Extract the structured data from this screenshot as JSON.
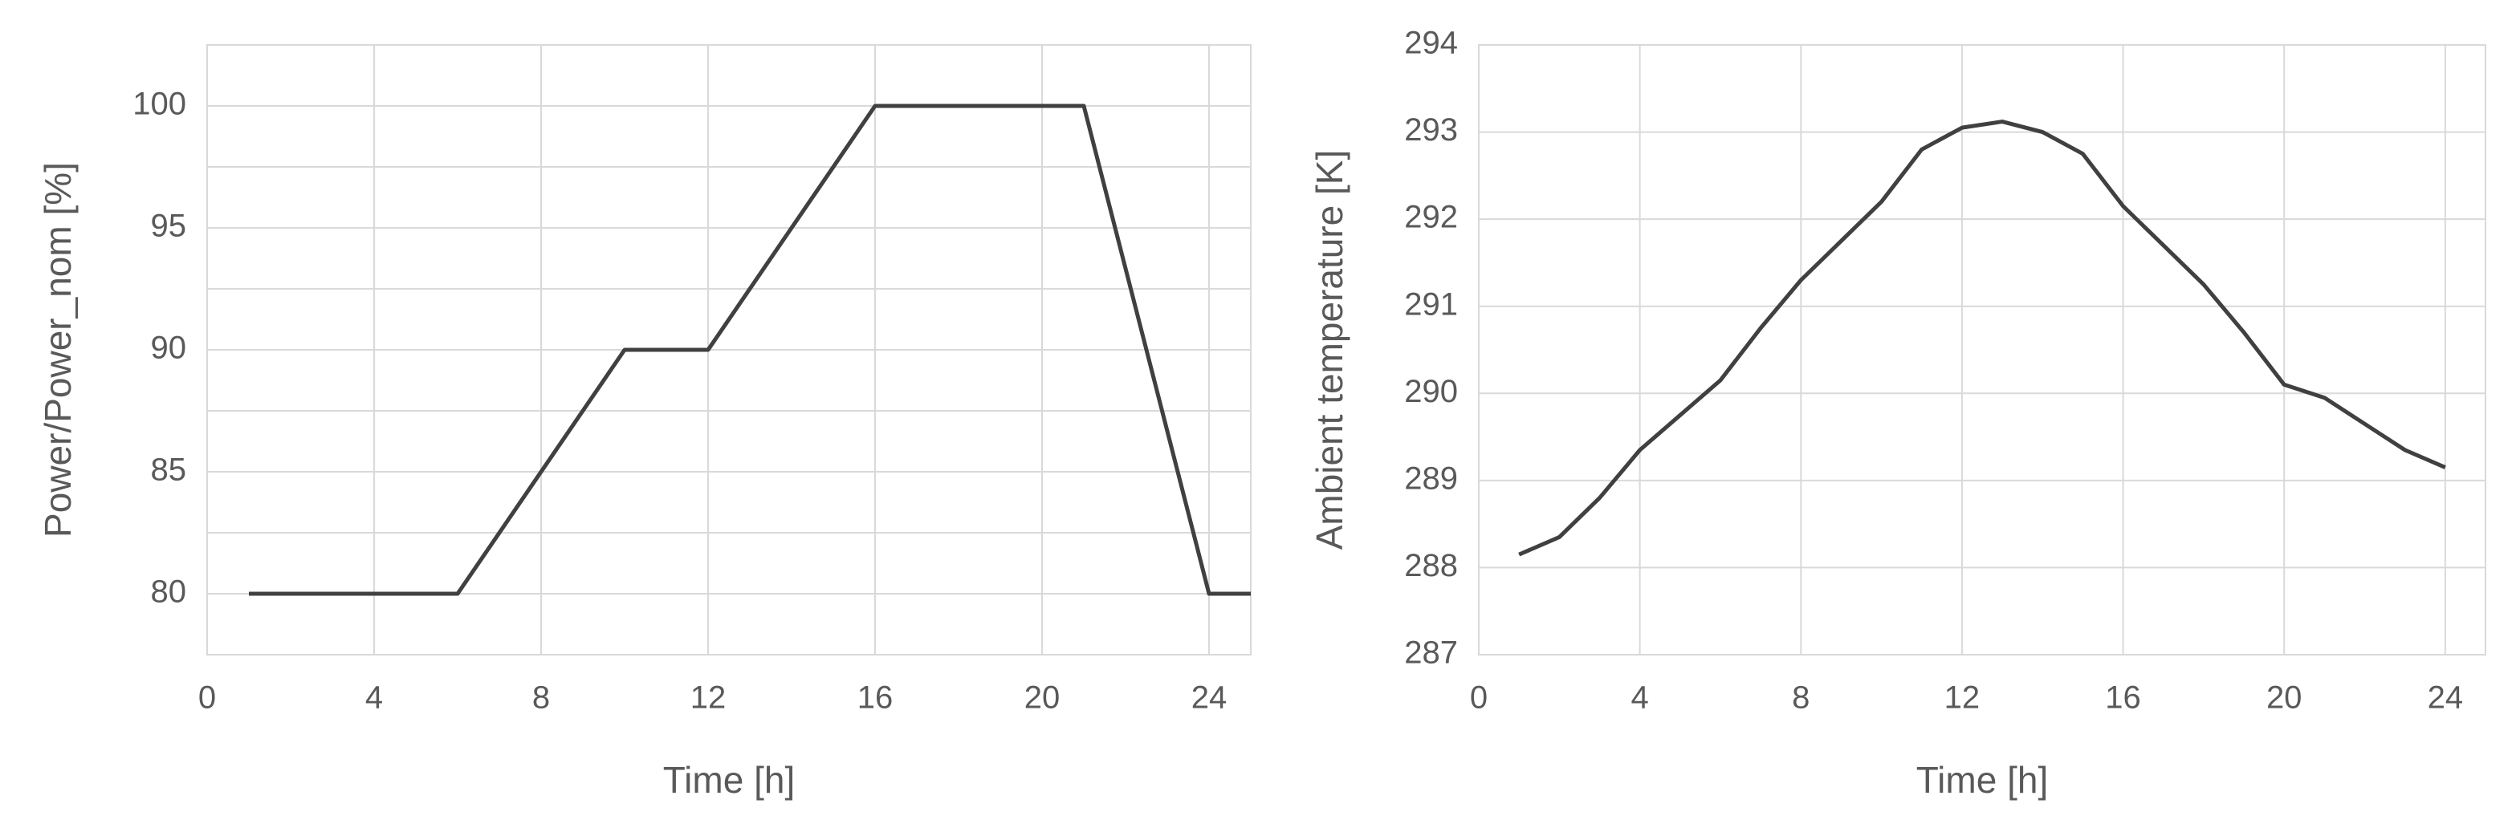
{
  "chart_data": [
    {
      "type": "line",
      "xlabel": "Time [h]",
      "ylabel": "Power/Power_nom [%]",
      "x": [
        1,
        6,
        10,
        12,
        16,
        21,
        24,
        25
      ],
      "values": [
        80,
        80,
        90,
        90,
        100,
        100,
        80,
        80
      ],
      "color": "#404040",
      "xlim": [
        0,
        25
      ],
      "xticks": [
        0,
        4,
        8,
        12,
        16,
        20,
        24
      ],
      "ylim": [
        77.5,
        102.5
      ],
      "yticks": [
        80,
        85,
        90,
        95,
        100
      ],
      "grid": true,
      "minor_grid": true
    },
    {
      "type": "line",
      "xlabel": "Time [h]",
      "ylabel": "Ambient temperature [K]",
      "x": [
        1,
        2,
        3,
        4,
        5,
        6,
        7,
        8,
        9,
        10,
        11,
        12,
        13,
        14,
        15,
        16,
        17,
        18,
        19,
        20,
        21,
        22,
        23,
        24
      ],
      "values": [
        288.15,
        288.35,
        288.8,
        289.35,
        289.75,
        290.15,
        290.75,
        291.3,
        291.75,
        292.2,
        292.8,
        293.05,
        293.12,
        293.0,
        292.75,
        292.15,
        291.7,
        291.25,
        290.7,
        290.1,
        289.95,
        289.65,
        289.35,
        289.15
      ],
      "color": "#404040",
      "xlim": [
        0,
        25
      ],
      "xticks": [
        0,
        4,
        8,
        12,
        16,
        20,
        24
      ],
      "ylim": [
        287,
        294
      ],
      "yticks": [
        287,
        288,
        289,
        290,
        291,
        292,
        293,
        294
      ],
      "grid": true,
      "minor_grid": false
    }
  ]
}
